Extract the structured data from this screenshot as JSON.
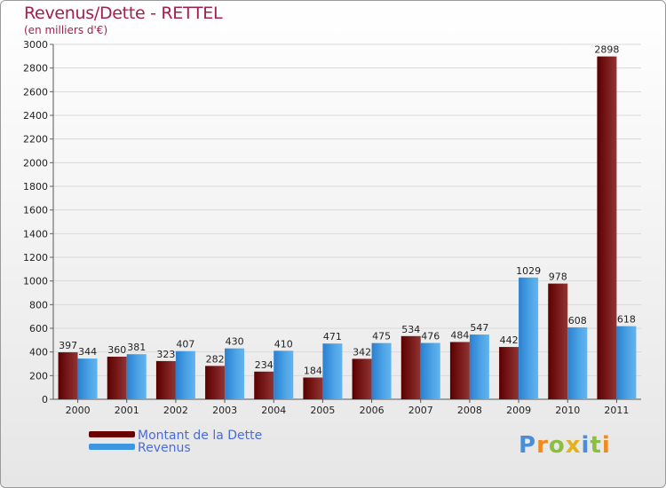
{
  "title": "Revenus/Dette - RETTEL",
  "subtitle": "(en milliers d'€)",
  "logo_text": "Proxiti",
  "colors": {
    "dette": "#6b0000",
    "dette_light": "#8a2e2e",
    "revenus": "#2a84d6",
    "revenus_light": "#58aee8",
    "title": "#a2204a",
    "legend_text": "#4b6bd6"
  },
  "legend": [
    {
      "label": "Montant de la Dette",
      "color": "#6b0000"
    },
    {
      "label": "Revenus",
      "color": "#3d97e0"
    }
  ],
  "chart_data": {
    "type": "bar",
    "title": "Revenus/Dette - RETTEL",
    "ylabel": "(en milliers d'€)",
    "xlabel": "",
    "ylim": [
      0,
      3000
    ],
    "yticks": [
      0,
      200,
      400,
      600,
      800,
      1000,
      1200,
      1400,
      1600,
      1800,
      2000,
      2200,
      2400,
      2600,
      2800,
      3000
    ],
    "categories": [
      "2000",
      "2001",
      "2002",
      "2003",
      "2004",
      "2005",
      "2006",
      "2007",
      "2008",
      "2009",
      "2010",
      "2011"
    ],
    "series": [
      {
        "name": "Montant de la Dette",
        "values": [
          397,
          360,
          323,
          282,
          234,
          184,
          342,
          534,
          484,
          442,
          978,
          2898
        ]
      },
      {
        "name": "Revenus",
        "values": [
          344,
          381,
          407,
          430,
          410,
          471,
          475,
          476,
          547,
          1029,
          608,
          618
        ]
      }
    ],
    "legend_position": "bottom-left"
  }
}
